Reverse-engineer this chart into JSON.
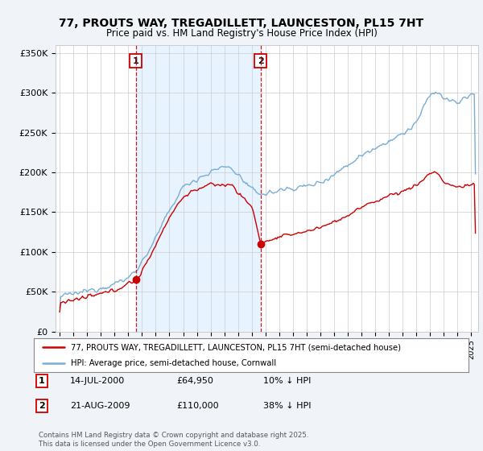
{
  "title": "77, PROUTS WAY, TREGADILLETT, LAUNCESTON, PL15 7HT",
  "subtitle": "Price paid vs. HM Land Registry's House Price Index (HPI)",
  "ylabel_ticks": [
    "£0",
    "£50K",
    "£100K",
    "£150K",
    "£200K",
    "£250K",
    "£300K",
    "£350K"
  ],
  "ytick_values": [
    0,
    50000,
    100000,
    150000,
    200000,
    250000,
    300000,
    350000
  ],
  "ylim": [
    0,
    360000
  ],
  "xlim_start": 1994.7,
  "xlim_end": 2025.5,
  "vline1_x": 2000.54,
  "vline2_x": 2009.64,
  "marker1_x": 2000.54,
  "marker1_y": 64950,
  "marker2_x": 2009.64,
  "marker2_y": 110000,
  "sale1_date": "14-JUL-2000",
  "sale1_price": "£64,950",
  "sale1_hpi": "10% ↓ HPI",
  "sale2_date": "21-AUG-2009",
  "sale2_price": "£110,000",
  "sale2_hpi": "38% ↓ HPI",
  "legend_label_red": "77, PROUTS WAY, TREGADILLETT, LAUNCESTON, PL15 7HT (semi-detached house)",
  "legend_label_blue": "HPI: Average price, semi-detached house, Cornwall",
  "footer": "Contains HM Land Registry data © Crown copyright and database right 2025.\nThis data is licensed under the Open Government Licence v3.0.",
  "red_color": "#cc0000",
  "blue_color": "#7aadd4",
  "shade_color": "#ddeeff",
  "vline_color": "#cc0000",
  "background_color": "#f0f4f8",
  "plot_bg_color": "#ffffff",
  "grid_color": "#cccccc"
}
